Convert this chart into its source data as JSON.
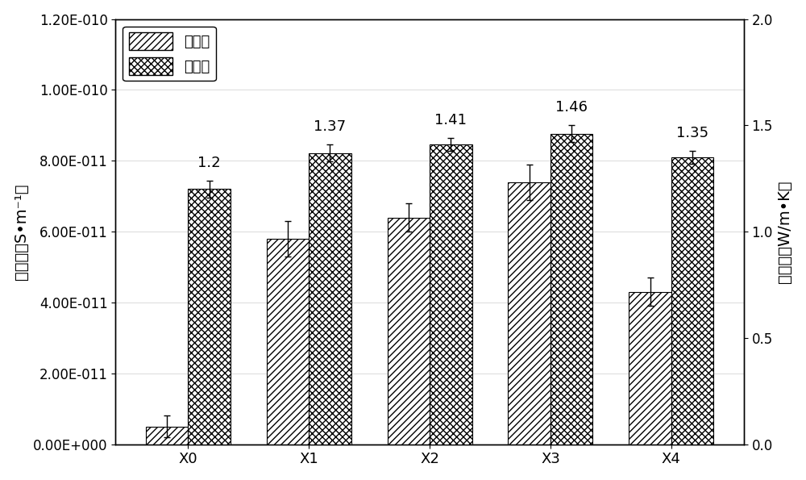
{
  "categories": [
    "X0",
    "X1",
    "X2",
    "X3",
    "X4"
  ],
  "elec_values": [
    5e-12,
    5.8e-11,
    6.4e-11,
    7.4e-11,
    4.3e-11
  ],
  "elec_errors": [
    3e-12,
    5e-12,
    4e-12,
    5e-12,
    4e-12
  ],
  "thermal_values": [
    1.2,
    1.37,
    1.41,
    1.46,
    1.35
  ],
  "thermal_errors": [
    0.04,
    0.04,
    0.03,
    0.04,
    0.03
  ],
  "thermal_labels": [
    "1.2",
    "1.37",
    "1.41",
    "1.46",
    "1.35"
  ],
  "elec_ylim": [
    0,
    1.2e-10
  ],
  "thermal_ylim": [
    0,
    2.0
  ],
  "elec_yticks": [
    0,
    2e-11,
    4e-11,
    6e-11,
    8e-11,
    1e-10,
    1.2e-10
  ],
  "elec_yticklabels": [
    "0.00E+000",
    "2.00E-011",
    "4.00E-011",
    "6.00E-011",
    "8.00E-011",
    "1.00E-010",
    "1.20E-010"
  ],
  "thermal_yticks": [
    0.0,
    0.5,
    1.0,
    1.5,
    2.0
  ],
  "thermal_yticklabels": [
    "0.0",
    "0.5",
    "1.0",
    "1.5",
    "2.0"
  ],
  "ylabel_left": "电导率（S•m⁻¹）",
  "ylabel_right": "热导率（W/m•K）",
  "legend_elec": "电导率",
  "legend_thermal": "热导率",
  "bar_width": 0.35,
  "elec_hatch": "////",
  "thermal_hatch": "xxxx",
  "elec_color": "white",
  "thermal_color": "white",
  "background_color": "#ffffff",
  "font_size": 13,
  "label_font_size": 13,
  "tick_fontsize": 12
}
